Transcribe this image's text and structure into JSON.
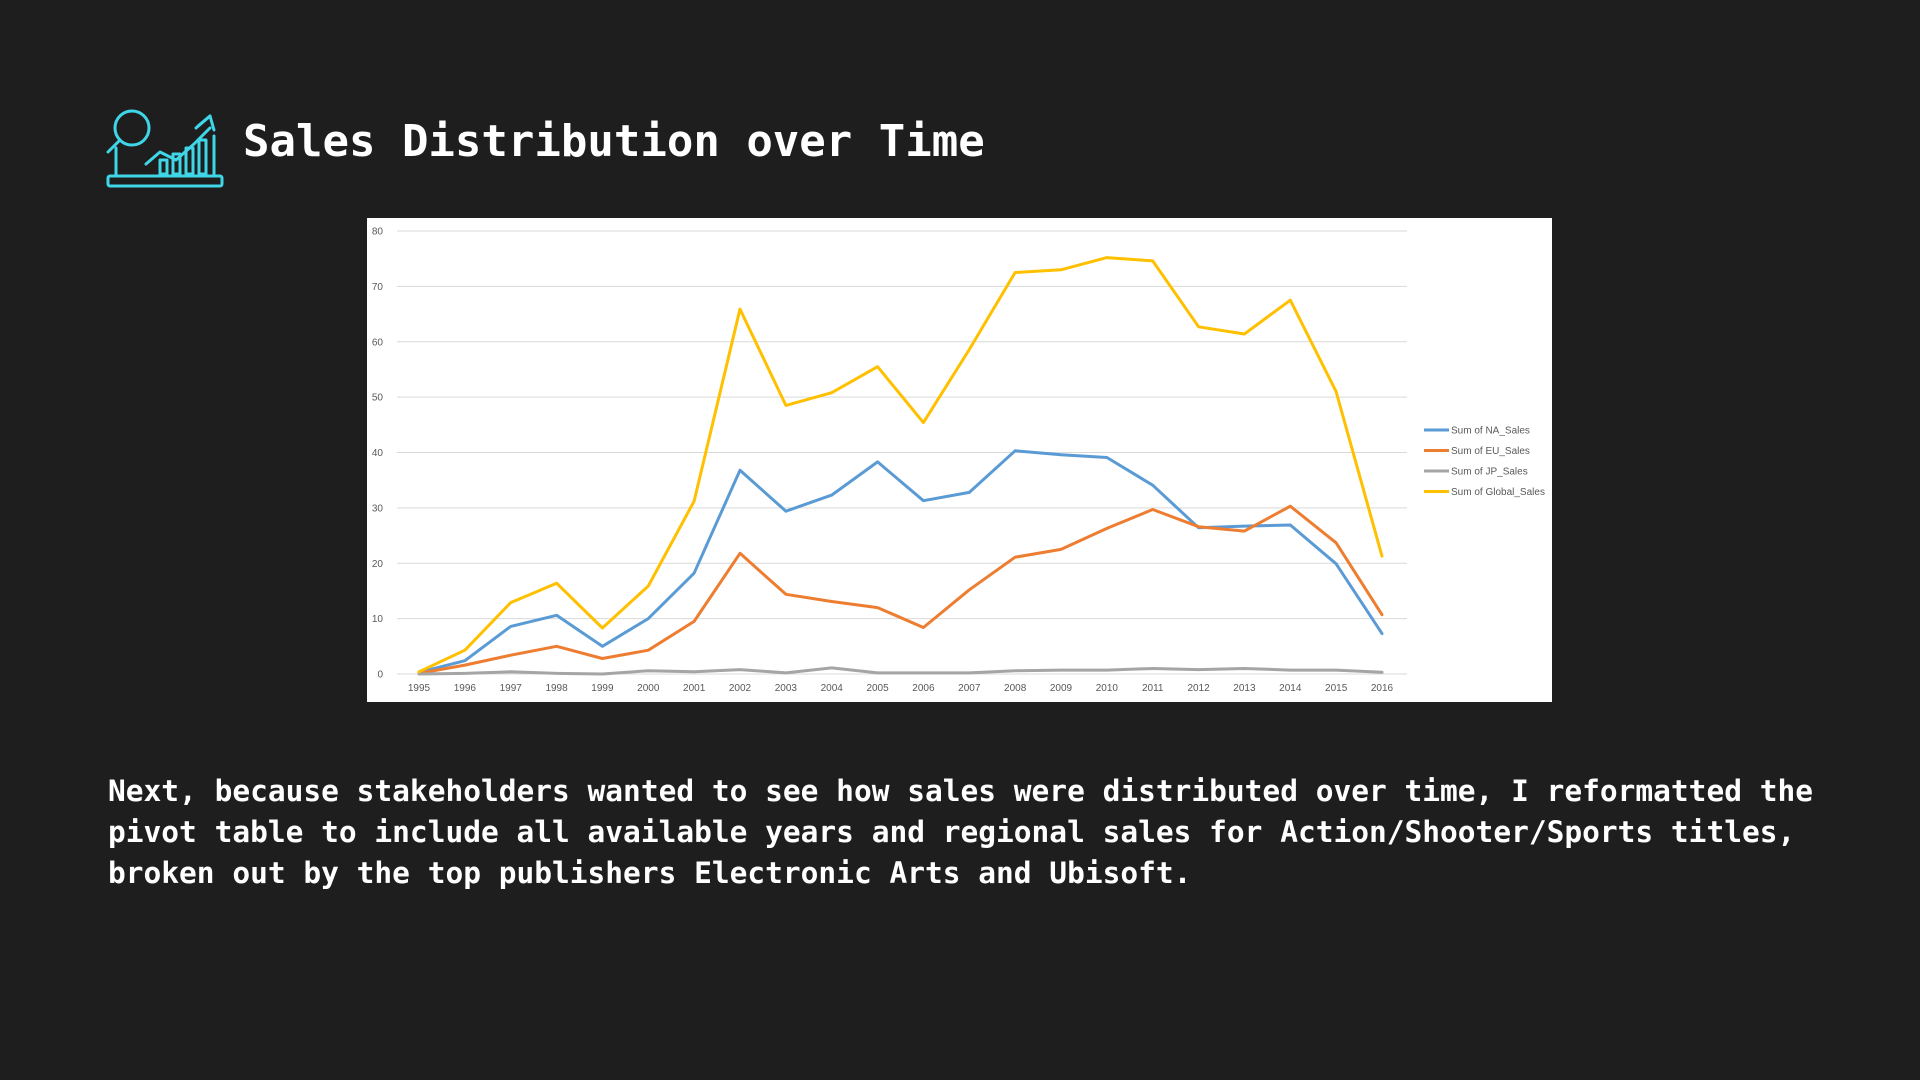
{
  "header": {
    "icon": "analytics-report-icon",
    "icon_color": "#3fd6e8",
    "title": "Sales Distribution over Time"
  },
  "description": "Next, because stakeholders wanted to see how sales were distributed over time, I reformatted the pivot table to include all available years and regional sales for Action/Shooter/Sports titles, broken out by the top publishers Electronic Arts and Ubisoft.",
  "chart_data": {
    "type": "line",
    "title": "",
    "xlabel": "",
    "ylabel": "",
    "x": [
      "1995",
      "1996",
      "1997",
      "1998",
      "1999",
      "2000",
      "2001",
      "2002",
      "2003",
      "2004",
      "2005",
      "2006",
      "2007",
      "2008",
      "2009",
      "2010",
      "2011",
      "2012",
      "2013",
      "2014",
      "2015",
      "2016"
    ],
    "ylim": [
      0,
      80
    ],
    "yticks": [
      0,
      10,
      20,
      30,
      40,
      50,
      60,
      70,
      80
    ],
    "grid": true,
    "legend_position": "right",
    "series": [
      {
        "name": "Sum of NA_Sales",
        "color": "#5b9bd5",
        "values": [
          0.3,
          2.4,
          8.6,
          10.6,
          5.0,
          10.0,
          18.2,
          36.8,
          29.4,
          32.3,
          38.3,
          31.3,
          32.8,
          40.3,
          39.6,
          39.1,
          34.1,
          26.4,
          26.7,
          26.9,
          19.9,
          7.3
        ]
      },
      {
        "name": "Sum of EU_Sales",
        "color": "#ed7d31",
        "values": [
          0.1,
          1.6,
          3.4,
          5.0,
          2.8,
          4.3,
          9.5,
          21.8,
          14.4,
          13.1,
          12.0,
          8.4,
          15.2,
          21.1,
          22.5,
          26.3,
          29.7,
          26.6,
          25.8,
          30.3,
          23.7,
          10.7
        ]
      },
      {
        "name": "Sum of JP_Sales",
        "color": "#a5a5a5",
        "values": [
          0.0,
          0.1,
          0.4,
          0.1,
          0.0,
          0.6,
          0.4,
          0.8,
          0.2,
          1.1,
          0.2,
          0.2,
          0.2,
          0.6,
          0.7,
          0.7,
          1.0,
          0.8,
          1.0,
          0.7,
          0.7,
          0.3
        ]
      },
      {
        "name": "Sum of Global_Sales",
        "color": "#ffc000",
        "values": [
          0.4,
          4.3,
          12.9,
          16.4,
          8.3,
          15.9,
          31.2,
          65.9,
          48.5,
          50.8,
          55.5,
          45.4,
          58.6,
          72.5,
          73.0,
          75.2,
          74.6,
          62.7,
          61.4,
          67.5,
          51.0,
          21.3
        ]
      }
    ]
  }
}
